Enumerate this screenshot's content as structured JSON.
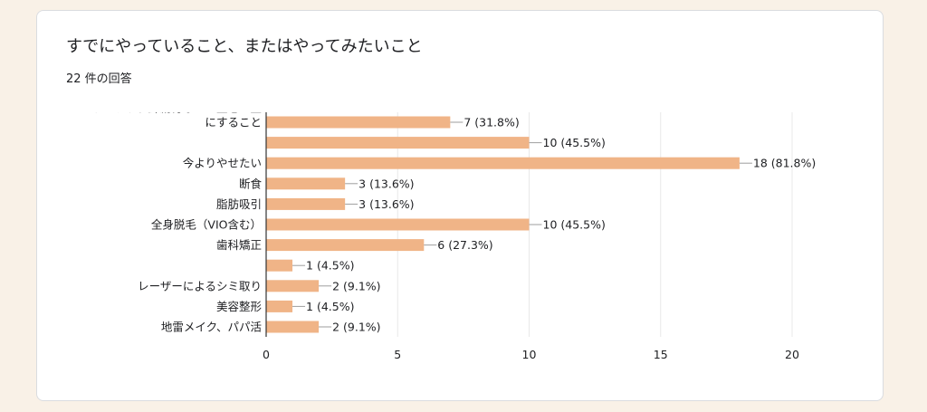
{
  "header": {
    "title": "すでにやっていること、またはやってみたいこと",
    "response_count": "22 件の回答"
  },
  "colors": {
    "bar": "#f0b487",
    "grid": "#e8e8e8",
    "axis": "#333333",
    "connector": "#9e9e9e",
    "background": "#f9f1e7",
    "card": "#ffffff"
  },
  "chart_data": {
    "type": "bar",
    "orientation": "horizontal",
    "categories": [
      [
        "アイプチ、絆創膏など二重を二重",
        "にすること"
      ],
      [
        ""
      ],
      [
        "今よりやせたい"
      ],
      [
        "断食"
      ],
      [
        "脂肪吸引"
      ],
      [
        "全身脱毛（VIO含む）"
      ],
      [
        "歯科矯正"
      ],
      [
        ""
      ],
      [
        "レーザーによるシミ取り"
      ],
      [
        "美容整形"
      ],
      [
        "地雷メイク、パパ活"
      ]
    ],
    "values": [
      7,
      10,
      18,
      3,
      3,
      10,
      6,
      1,
      2,
      1,
      2
    ],
    "data_labels": [
      "7 (31.8%)",
      "10 (45.5%)",
      "18 (81.8%)",
      "3 (13.6%)",
      "3 (13.6%)",
      "10 (45.5%)",
      "6 (27.3%)",
      "1 (4.5%)",
      "2 (9.1%)",
      "1 (4.5%)",
      "2 (9.1%)"
    ],
    "xlim": [
      0,
      20
    ],
    "xticks": [
      0,
      5,
      10,
      15,
      20
    ],
    "grid": true,
    "legend": "none"
  }
}
